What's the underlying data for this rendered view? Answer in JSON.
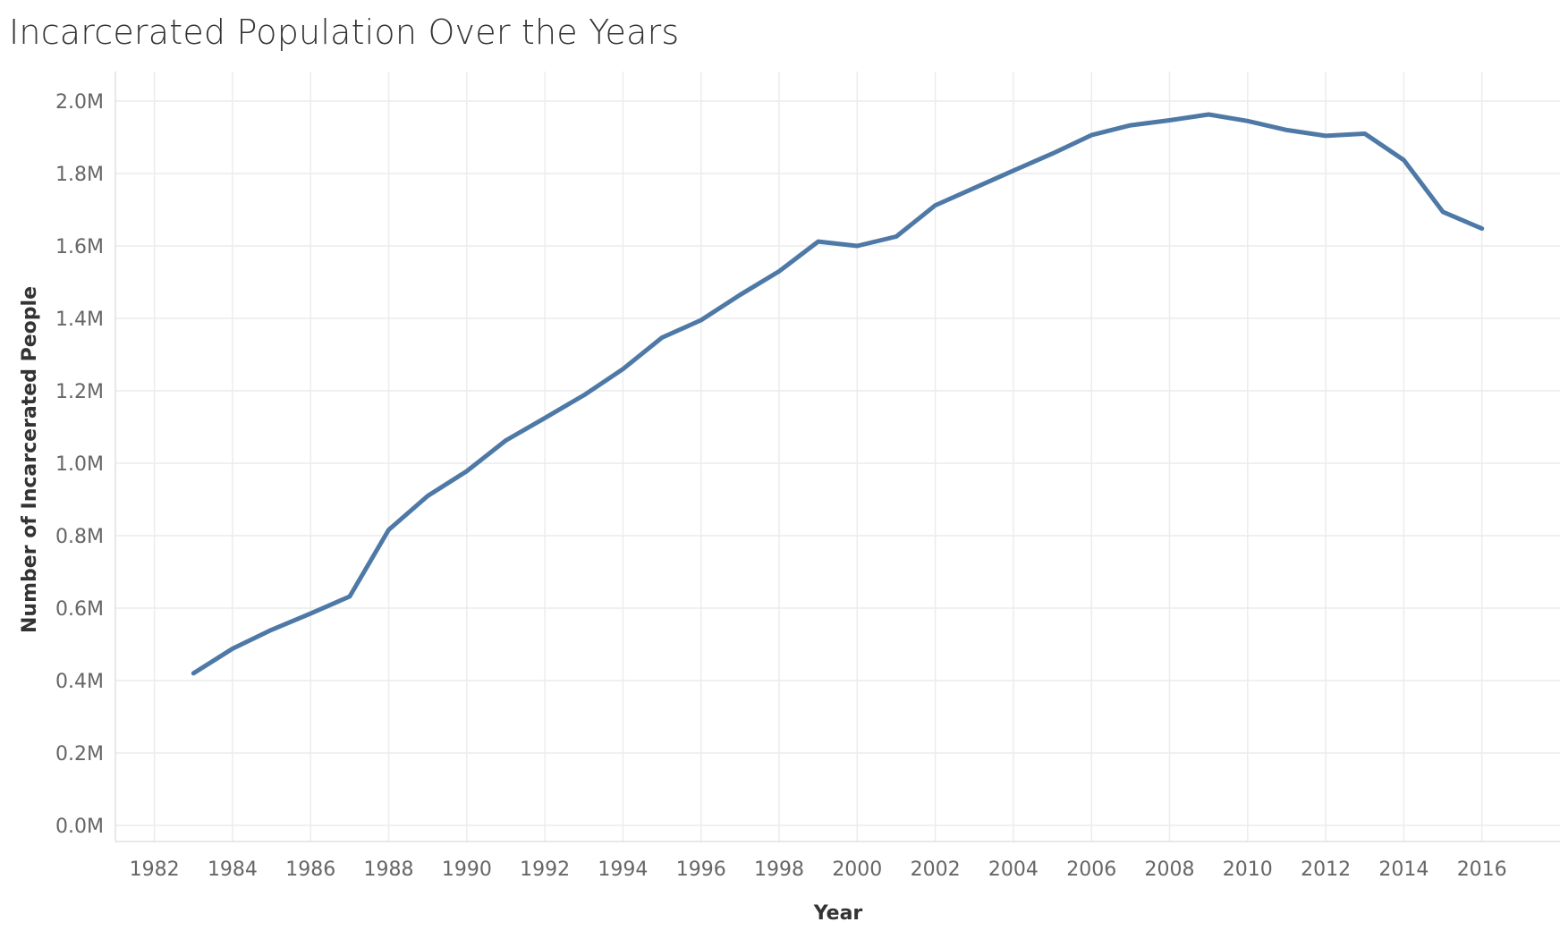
{
  "chart_data": {
    "type": "line",
    "title": "Incarcerated Population Over the Years",
    "xlabel": "Year",
    "ylabel": "Number of Incarcerated People",
    "xlim": [
      1981,
      2018
    ],
    "ylim": [
      0,
      2000000
    ],
    "x_ticks": [
      1982,
      1984,
      1986,
      1988,
      1990,
      1992,
      1994,
      1996,
      1998,
      2000,
      2002,
      2004,
      2006,
      2008,
      2010,
      2012,
      2014,
      2016
    ],
    "y_ticks": [
      0,
      200000,
      400000,
      600000,
      800000,
      1000000,
      1200000,
      1400000,
      1600000,
      1800000,
      2000000
    ],
    "y_tick_labels": [
      "0.0M",
      "0.2M",
      "0.4M",
      "0.6M",
      "0.8M",
      "1.0M",
      "1.2M",
      "1.4M",
      "1.6M",
      "1.8M",
      "2.0M"
    ],
    "grid": true,
    "series": [
      {
        "color": "#4e79a7",
        "x": [
          1983,
          1984,
          1985,
          1986,
          1987,
          1988,
          1989,
          1990,
          1991,
          1992,
          1993,
          1994,
          1995,
          1996,
          1997,
          1998,
          1999,
          2000,
          2001,
          2002,
          2003,
          2004,
          2005,
          2006,
          2007,
          2008,
          2009,
          2010,
          2011,
          2012,
          2013,
          2014,
          2015,
          2016
        ],
        "values": [
          420000,
          488000,
          540000,
          585000,
          632000,
          816000,
          910000,
          978000,
          1063000,
          1125000,
          1188000,
          1260000,
          1347000,
          1395000,
          1465000,
          1530000,
          1612000,
          1600000,
          1626000,
          1712000,
          1760000,
          1808000,
          1855000,
          1906000,
          1933000,
          1947000,
          1963000,
          1945000,
          1920000,
          1904000,
          1910000,
          1837000,
          1694000,
          1648000
        ]
      }
    ]
  }
}
